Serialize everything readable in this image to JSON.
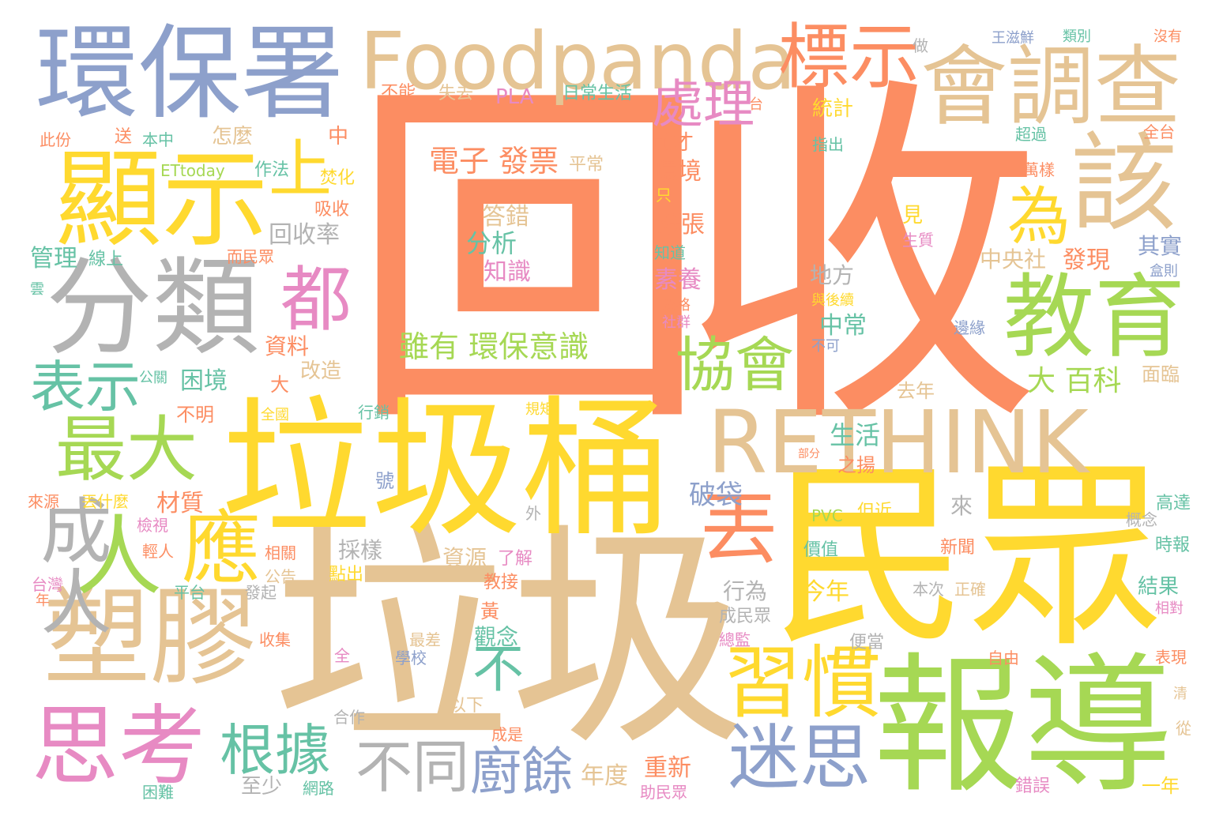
{
  "palette": {
    "salmon": "#fc8d62",
    "yellow": "#ffd92f",
    "tan": "#e5c494",
    "green": "#a6d854",
    "teal": "#66c2a5",
    "blue": "#8da0cb",
    "pink": "#e78ac3",
    "gray": "#b3b3b3",
    "background": "#ffffff"
  },
  "words": [
    {
      "text": "回收",
      "color": "salmon",
      "id": "w-huishou"
    },
    {
      "text": "垃圾",
      "color": "tan",
      "id": "w-laji"
    },
    {
      "text": "民眾",
      "color": "yellow",
      "id": "w-minzhong"
    },
    {
      "text": "垃圾桶",
      "color": "yellow",
      "id": "w-lajitong"
    },
    {
      "text": "報導",
      "color": "green",
      "id": "w-baodao"
    },
    {
      "text": "環保署",
      "color": "blue",
      "id": "w-huanbaoshu"
    },
    {
      "text": "Foodpanda",
      "color": "tan",
      "id": "w-foodpanda"
    },
    {
      "text": "會調查",
      "color": "tan",
      "id": "w-huidiaocha"
    },
    {
      "text": "顯示",
      "color": "yellow",
      "id": "w-xianshi"
    },
    {
      "text": "分類",
      "color": "gray",
      "id": "w-fenlei"
    },
    {
      "text": "塑膠",
      "color": "tan",
      "id": "w-sujiao"
    },
    {
      "text": "思考",
      "color": "pink",
      "id": "w-sikao"
    },
    {
      "text": "RETHINK",
      "color": "tan",
      "id": "w-rethink"
    },
    {
      "text": "教育",
      "color": "green",
      "id": "w-jiaoyu"
    },
    {
      "text": "該",
      "color": "tan",
      "id": "w-gai"
    },
    {
      "text": "標示",
      "color": "salmon",
      "id": "w-biaoshi"
    },
    {
      "text": "習慣",
      "color": "yellow",
      "id": "w-xiguan"
    },
    {
      "text": "迷思",
      "color": "blue",
      "id": "w-misi"
    },
    {
      "text": "最大",
      "color": "green",
      "id": "w-zuida"
    },
    {
      "text": "應",
      "color": "yellow",
      "id": "w-ying"
    },
    {
      "text": "人",
      "color": "green",
      "id": "w-ren"
    },
    {
      "text": "上",
      "color": "yellow",
      "id": "w-shang"
    },
    {
      "text": "都",
      "color": "pink",
      "id": "w-dou"
    },
    {
      "text": "為",
      "color": "yellow",
      "id": "w-wei"
    },
    {
      "text": "協會",
      "color": "green",
      "id": "w-xiehui"
    },
    {
      "text": "處理",
      "color": "pink",
      "id": "w-chuli"
    },
    {
      "text": "表示",
      "color": "teal",
      "id": "w-biaoshi2"
    },
    {
      "text": "成人",
      "color": "gray",
      "id": "w-chengren"
    },
    {
      "text": "根據",
      "color": "teal",
      "id": "w-genju"
    },
    {
      "text": "丟",
      "color": "salmon",
      "id": "w-diu"
    },
    {
      "text": "不同",
      "color": "gray",
      "id": "w-butong"
    },
    {
      "text": "廚餘",
      "color": "blue",
      "id": "w-chuyu"
    },
    {
      "text": "不",
      "color": "teal",
      "id": "w-bu"
    },
    {
      "text": "電子 發票",
      "color": "salmon",
      "id": "w-dianzi"
    },
    {
      "text": "雖有 環保意識",
      "color": "green",
      "id": "w-suiyou"
    },
    {
      "text": "分析",
      "color": "teal",
      "id": "w-fenxi"
    },
    {
      "text": "知識",
      "color": "pink",
      "id": "w-zhishi"
    },
    {
      "text": "答錯",
      "color": "tan",
      "id": "w-dacuo"
    },
    {
      "text": "大 百科",
      "color": "green",
      "id": "w-baike"
    },
    {
      "text": "生活",
      "color": "teal",
      "id": "w-shenghuo"
    },
    {
      "text": "破袋",
      "color": "blue",
      "id": "w-podai"
    },
    {
      "text": "回收率",
      "color": "gray",
      "id": "w-huishoulv"
    },
    {
      "text": "資料",
      "color": "salmon",
      "id": "w-ziliao"
    },
    {
      "text": "困境",
      "color": "teal",
      "id": "w-kunjing"
    },
    {
      "text": "管理",
      "color": "teal",
      "id": "w-guanli"
    },
    {
      "text": "材質",
      "color": "salmon",
      "id": "w-caizhi"
    },
    {
      "text": "PLA",
      "color": "pink",
      "id": "w-pla"
    },
    {
      "text": "日常生活",
      "color": "teal",
      "id": "w-richang"
    },
    {
      "text": "環境",
      "color": "salmon",
      "id": "w-huanjing"
    },
    {
      "text": "紙張",
      "color": "salmon",
      "id": "w-zhizhang"
    },
    {
      "text": "素養",
      "color": "pink",
      "id": "w-suyang"
    },
    {
      "text": "前才",
      "color": "salmon",
      "id": "w-qiancai"
    },
    {
      "text": "中央社",
      "color": "tan",
      "id": "w-zhongyangshe"
    },
    {
      "text": "發現",
      "color": "salmon",
      "id": "w-faxian"
    },
    {
      "text": "其實",
      "color": "blue",
      "id": "w-qishi"
    },
    {
      "text": "中常",
      "color": "teal",
      "id": "w-zhongchang"
    },
    {
      "text": "地方",
      "color": "gray",
      "id": "w-difang"
    },
    {
      "text": "今年",
      "color": "yellow",
      "id": "w-jinnian"
    },
    {
      "text": "行為",
      "color": "gray",
      "id": "w-xingwei"
    },
    {
      "text": "觀念",
      "color": "teal",
      "id": "w-guannian"
    },
    {
      "text": "年度",
      "color": "tan",
      "id": "w-niandu"
    },
    {
      "text": "重新",
      "color": "salmon",
      "id": "w-chongxin"
    },
    {
      "text": "至少",
      "color": "gray",
      "id": "w-zhishao"
    },
    {
      "text": "結果",
      "color": "teal",
      "id": "w-jieguo"
    },
    {
      "text": "一年",
      "color": "yellow",
      "id": "w-yinian"
    },
    {
      "text": "錯誤",
      "color": "pink",
      "id": "w-cuowu"
    },
    {
      "text": "怎麼",
      "color": "tan",
      "id": "w-zenme"
    },
    {
      "text": "作法",
      "color": "teal",
      "id": "w-zuofa"
    },
    {
      "text": "ETtoday",
      "color": "green",
      "id": "w-ettoday"
    },
    {
      "text": "本中",
      "color": "teal",
      "id": "w-benzhong"
    },
    {
      "text": "此份",
      "color": "salmon",
      "id": "w-cifen"
    },
    {
      "text": "送",
      "color": "salmon",
      "id": "w-song"
    },
    {
      "text": "中",
      "color": "salmon",
      "id": "w-zhong"
    },
    {
      "text": "不能",
      "color": "salmon",
      "id": "w-buneng"
    },
    {
      "text": "失去",
      "color": "tan",
      "id": "w-shiqu"
    },
    {
      "text": "王滋鮮",
      "color": "blue",
      "id": "w-wangzixian"
    },
    {
      "text": "類別",
      "color": "teal",
      "id": "w-leibie"
    },
    {
      "text": "沒有",
      "color": "salmon",
      "id": "w-meiyou"
    },
    {
      "text": "做",
      "color": "gray",
      "id": "w-zuo"
    },
    {
      "text": "統計",
      "color": "yellow",
      "id": "w-tongji"
    },
    {
      "text": "指出",
      "color": "teal",
      "id": "w-zhichu"
    },
    {
      "text": "超過",
      "color": "teal",
      "id": "w-chaoguo"
    },
    {
      "text": "全台",
      "color": "salmon",
      "id": "w-quantai"
    },
    {
      "text": "萬樣",
      "color": "salmon",
      "id": "w-wanyang"
    },
    {
      "text": "平常",
      "color": "tan",
      "id": "w-pingchang"
    },
    {
      "text": "焚化",
      "color": "yellow",
      "id": "w-fenhua"
    },
    {
      "text": "吸收",
      "color": "salmon",
      "id": "w-xishou"
    },
    {
      "text": "而民眾",
      "color": "salmon",
      "id": "w-erminzhong"
    },
    {
      "text": "線上",
      "color": "teal",
      "id": "w-xianshang"
    },
    {
      "text": "不明",
      "color": "salmon",
      "id": "w-buming"
    },
    {
      "text": "改造",
      "color": "tan",
      "id": "w-gaizao"
    },
    {
      "text": "大",
      "color": "salmon",
      "id": "w-da"
    },
    {
      "text": "公關",
      "color": "teal",
      "id": "w-gongguan"
    },
    {
      "text": "全國",
      "color": "yellow",
      "id": "w-quanguo"
    },
    {
      "text": "行銷",
      "color": "teal",
      "id": "w-xingxiao"
    },
    {
      "text": "規矩",
      "color": "yellow",
      "id": "w-guiju"
    },
    {
      "text": "號",
      "color": "blue",
      "id": "w-hao"
    },
    {
      "text": "來源",
      "color": "salmon",
      "id": "w-laiyuan"
    },
    {
      "text": "丟什麼",
      "color": "yellow",
      "id": "w-diushenme"
    },
    {
      "text": "檢視",
      "color": "pink",
      "id": "w-jianshi"
    },
    {
      "text": "輕人",
      "color": "salmon",
      "id": "w-qingren"
    },
    {
      "text": "相關",
      "color": "salmon",
      "id": "w-xiangguan"
    },
    {
      "text": "公告",
      "color": "tan",
      "id": "w-gonggao"
    },
    {
      "text": "點出",
      "color": "yellow",
      "id": "w-dianchu"
    },
    {
      "text": "採樣",
      "color": "gray",
      "id": "w-caiyang"
    },
    {
      "text": "資源",
      "color": "tan",
      "id": "w-ziyuan"
    },
    {
      "text": "了解",
      "color": "pink",
      "id": "w-liaojie"
    },
    {
      "text": "教接",
      "color": "salmon",
      "id": "w-jiaojie"
    },
    {
      "text": "黃",
      "color": "salmon",
      "id": "w-huang"
    },
    {
      "text": "外",
      "color": "gray",
      "id": "w-wai"
    },
    {
      "text": "來",
      "color": "gray",
      "id": "w-lai"
    },
    {
      "text": "PVC",
      "color": "green",
      "id": "w-pvc"
    },
    {
      "text": "但近",
      "color": "yellow",
      "id": "w-danjin"
    },
    {
      "text": "價值",
      "color": "teal",
      "id": "w-jiazhi"
    },
    {
      "text": "新聞",
      "color": "salmon",
      "id": "w-xinwen"
    },
    {
      "text": "高達",
      "color": "teal",
      "id": "w-gaoda"
    },
    {
      "text": "概念",
      "color": "gray",
      "id": "w-gainian"
    },
    {
      "text": "時報",
      "color": "teal",
      "id": "w-shibao"
    },
    {
      "text": "去年",
      "color": "tan",
      "id": "w-qunian"
    },
    {
      "text": "面臨",
      "color": "tan",
      "id": "w-mianlin"
    },
    {
      "text": "之揚",
      "color": "salmon",
      "id": "w-zhiyang"
    },
    {
      "text": "台灣",
      "color": "pink",
      "id": "w-taiwan"
    },
    {
      "text": "年",
      "color": "salmon",
      "id": "w-nian"
    },
    {
      "text": "平台",
      "color": "teal",
      "id": "w-pingtai"
    },
    {
      "text": "發起",
      "color": "gray",
      "id": "w-faqi"
    },
    {
      "text": "收集",
      "color": "salmon",
      "id": "w-shouji"
    },
    {
      "text": "最差",
      "color": "tan",
      "id": "w-zuicha"
    },
    {
      "text": "全",
      "color": "pink",
      "id": "w-quan"
    },
    {
      "text": "學校",
      "color": "blue",
      "id": "w-xuexiao"
    },
    {
      "text": "以下",
      "color": "tan",
      "id": "w-yixia"
    },
    {
      "text": "合作",
      "color": "gray",
      "id": "w-hezuo"
    },
    {
      "text": "成是",
      "color": "salmon",
      "id": "w-chengshi"
    },
    {
      "text": "網路",
      "color": "teal",
      "id": "w-wanglu"
    },
    {
      "text": "困難",
      "color": "teal",
      "id": "w-kunnan"
    },
    {
      "text": "助民眾",
      "color": "pink",
      "id": "w-zhuminzhong"
    },
    {
      "text": "總監",
      "color": "pink",
      "id": "w-zongjian"
    },
    {
      "text": "成民眾",
      "color": "gray",
      "id": "w-chengminzhong"
    },
    {
      "text": "本次",
      "color": "gray",
      "id": "w-benci"
    },
    {
      "text": "正確",
      "color": "tan",
      "id": "w-zhengque"
    },
    {
      "text": "便當",
      "color": "gray",
      "id": "w-biandang"
    },
    {
      "text": "自由",
      "color": "salmon",
      "id": "w-ziyou"
    },
    {
      "text": "表現",
      "color": "salmon",
      "id": "w-biaoxian"
    },
    {
      "text": "從",
      "color": "tan",
      "id": "w-cong"
    },
    {
      "text": "與後續",
      "color": "yellow",
      "id": "w-yuhouxu"
    },
    {
      "text": "不可",
      "color": "blue",
      "id": "w-buke"
    },
    {
      "text": "邊緣",
      "color": "blue",
      "id": "w-bianyuan"
    },
    {
      "text": "見",
      "color": "yellow",
      "id": "w-jian"
    },
    {
      "text": "生質",
      "color": "pink",
      "id": "w-shengzhi"
    },
    {
      "text": "盒則",
      "color": "blue",
      "id": "w-heze"
    },
    {
      "text": "知道",
      "color": "teal",
      "id": "w-zhidao"
    },
    {
      "text": "及格",
      "color": "salmon",
      "id": "w-jige"
    },
    {
      "text": "社群",
      "color": "pink",
      "id": "w-shequn"
    },
    {
      "text": "只",
      "color": "yellow",
      "id": "w-zhi"
    },
    {
      "text": "台",
      "color": "salmon",
      "id": "w-tai"
    },
    {
      "text": "雲",
      "color": "teal",
      "id": "w-yun"
    },
    {
      "text": "部分",
      "color": "salmon",
      "id": "w-bufen"
    },
    {
      "text": "相對",
      "color": "pink",
      "id": "w-xiangdui"
    },
    {
      "text": "清",
      "color": "tan",
      "id": "w-qing"
    }
  ]
}
